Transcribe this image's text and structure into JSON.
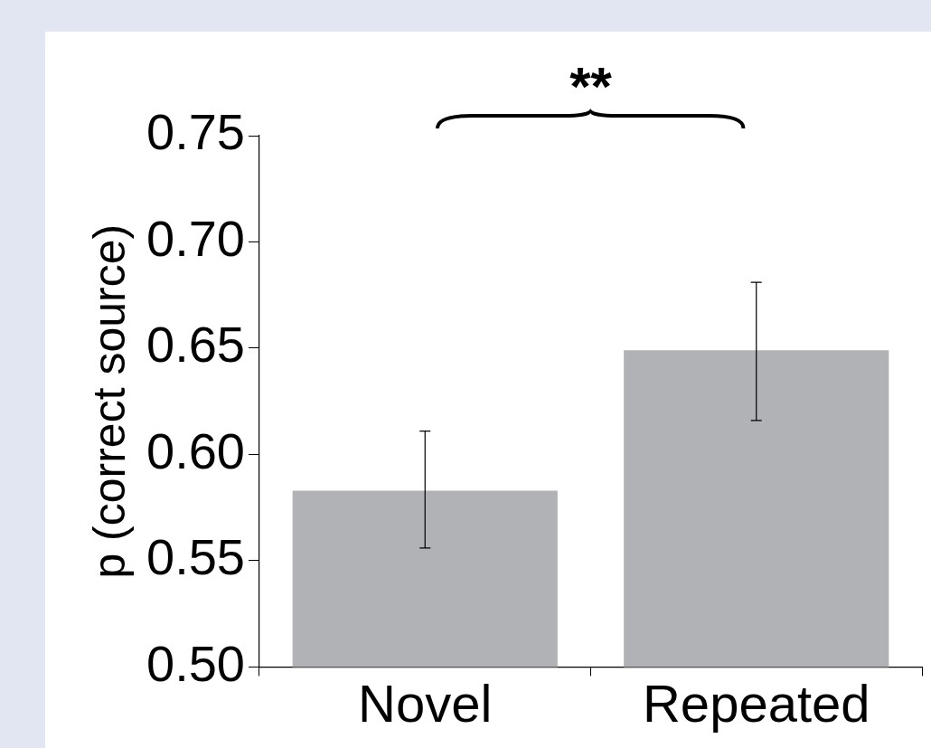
{
  "chart_data": {
    "type": "bar",
    "ylabel": "p (correct source)",
    "categories": [
      "Novel",
      "Repeated"
    ],
    "values": [
      0.583,
      0.649
    ],
    "errors": [
      [
        0.556,
        0.611
      ],
      [
        0.616,
        0.681
      ]
    ],
    "color": "#b1b2b6",
    "ylim": [
      0.5,
      0.75
    ],
    "yticks": [
      {
        "value": 0.5,
        "label": "0.50"
      },
      0.55,
      {
        "value": 0.6,
        "label": "0.60"
      },
      0.65,
      {
        "value": 0.7,
        "label": "0.70"
      },
      0.75
    ],
    "grid": false,
    "legend": false,
    "annotations": [
      "**"
    ]
  }
}
